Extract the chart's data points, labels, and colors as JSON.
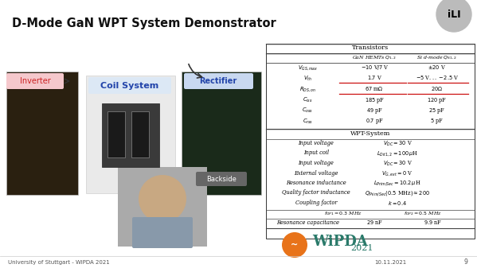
{
  "title": "D-Mode GaN WPT System Demonstrator",
  "bg_color": "#f0eeec",
  "title_color": "#000000",
  "footer_left": "University of Stuttgart - WiPDA 2021",
  "footer_right": "10.11.2021",
  "page_num": "9",
  "table": {
    "transistors_header": "Transistors",
    "col1_header": "GaN HEMTs $Q_{1,2}$",
    "col2_header": "Si d-mode $Q_{S1,2}$",
    "rows": [
      [
        "$V_{GS,max}$",
        "$-10$ V$/7$ V",
        "$\\pm20$ V"
      ],
      [
        "$V_{th}$",
        "$1.7$ V",
        "$-5$ V$...-2.5$ V"
      ],
      [
        "$R_{DS,on}$",
        "$67$ m$\\Omega$",
        "$20\\Omega$"
      ],
      [
        "$C_{iss}$",
        "$185$ pF",
        "$120$ pF"
      ],
      [
        "$C_{oss}$",
        "$49$ pF",
        "$25$ pF"
      ],
      [
        "$C_{rss}$",
        "$0.7$ pF",
        "$5$ pF"
      ]
    ],
    "wpt_header": "WPT-System",
    "wpt_rows_left": [
      "Input voltage",
      "Input coil",
      "Input voltage",
      "External voltage",
      "Resonance inductance",
      "Quality factor inductance",
      "Coupling factor"
    ],
    "wpt_rows_right": [
      "$V_{DC}=30$ V",
      "$L_{Dit1,2}=100\\,\\mu$H",
      "$V_{DC}=30$ V",
      "$V_{G,ext}=0$ V",
      "$L_{Prim/Sec}=10.2\\,\\mu$H",
      "$Q_{Prim/Sec}(0.5$ MHz$)\\approx200$",
      "$k=0.4$"
    ],
    "freq_row": [
      "$f_{OP1}=0.3$ MHz",
      "$f_{OP2}=0.5$ MHz"
    ],
    "cap_label": "Resonance capacitance",
    "cap_val1": "$29$ nF",
    "cap_val2": "$9.9$ nF"
  },
  "labels": {
    "inverter": "Inverter",
    "coil": "Coil System",
    "rectifier": "Rectifier",
    "backside": "Backside"
  },
  "inverter_bg": "#f5c8cc",
  "coil_bg": "#dce8f5",
  "rectifier_bg": "#c8d8f0",
  "inverter_color": "#cc2222",
  "coil_color": "#2244aa",
  "rectifier_color": "#2244aa"
}
